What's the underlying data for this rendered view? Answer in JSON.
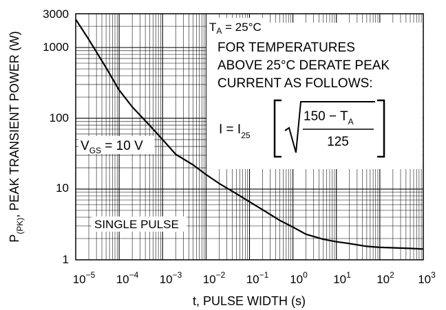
{
  "chart_data": {
    "type": "line",
    "x_scale": "log",
    "y_scale": "log",
    "xlim": [
      1e-05,
      1000
    ],
    "ylim": [
      1,
      3000
    ],
    "grid": true,
    "xlabel": "t, PULSE WIDTH (s)",
    "ylabel": {
      "pre": "P",
      "sub": "(PK)",
      "post": ", PEAK TRANSIENT POWER (W)"
    },
    "x_ticks": [
      {
        "base": "10",
        "exp": "−5"
      },
      {
        "base": "10",
        "exp": "−4"
      },
      {
        "base": "10",
        "exp": "−3"
      },
      {
        "base": "10",
        "exp": "−2"
      },
      {
        "base": "10",
        "exp": "−1"
      },
      {
        "base": "10",
        "exp": "0"
      },
      {
        "base": "10",
        "exp": "1"
      },
      {
        "base": "10",
        "exp": "2"
      },
      {
        "base": "10",
        "exp": "3"
      }
    ],
    "y_ticks": [
      "3000",
      "1000",
      "100",
      "10",
      "1"
    ],
    "series": [
      {
        "x": [
          1e-05,
          2e-05,
          5e-05,
          0.0001,
          0.0002,
          0.0005,
          0.001,
          0.002,
          0.005,
          0.01,
          0.02,
          0.05,
          0.1,
          0.2,
          0.5,
          1,
          2,
          5,
          10,
          20,
          50,
          100,
          200,
          500,
          1000
        ],
        "y": [
          2500,
          1300,
          520,
          250,
          145,
          80,
          50,
          31,
          22,
          16,
          12,
          8.6,
          6.6,
          5.1,
          3.6,
          2.9,
          2.3,
          1.95,
          1.8,
          1.7,
          1.55,
          1.5,
          1.48,
          1.45,
          1.42
        ]
      }
    ],
    "annotations": {
      "temp": {
        "pre": "T",
        "sub": "A",
        "post": " = 25°C"
      },
      "derate_lines": [
        "FOR TEMPERATURES",
        "ABOVE 25°C DERATE PEAK",
        "CURRENT AS FOLLOWS:"
      ],
      "formula": {
        "lhs": "I = I",
        "lhs_sub": "25",
        "numerator": "150 − T",
        "numerator_sub": "A",
        "denominator": "125"
      },
      "vgs": {
        "pre": "V",
        "sub": "GS",
        "post": " = 10 V"
      },
      "pulse": "SINGLE PULSE"
    }
  }
}
